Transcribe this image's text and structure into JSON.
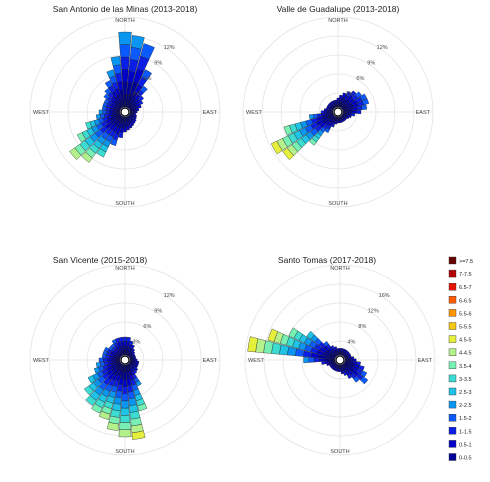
{
  "palette": [
    "#00007a",
    "#000099",
    "#0000c8",
    "#0a1ee6",
    "#0a5aff",
    "#0a96f0",
    "#1ec3e6",
    "#3cdcd2",
    "#78f0b4",
    "#b4f08c",
    "#e6f03c",
    "#f5c814",
    "#ff9600",
    "#ff5a00",
    "#e61400",
    "#b40000",
    "#640000"
  ],
  "legend": {
    "labels": [
      ">=7.5",
      "7-7.5",
      "6.5-7",
      "6-6.5",
      "5.5-6",
      "5-5.5",
      "4.5-5",
      "4-4.5",
      "3.5-4",
      "3-3.5",
      "2.5-3",
      "2-2.5",
      "1.5-2",
      "1-1.5",
      "0.5-1",
      "0-0.5"
    ],
    "colors": [
      "#640000",
      "#b40000",
      "#e61400",
      "#ff5a00",
      "#ff9600",
      "#f5c814",
      "#e6f03c",
      "#b4f08c",
      "#78f0b4",
      "#3cdcd2",
      "#1ec3e6",
      "#0a96f0",
      "#0a5aff",
      "#0a1ee6",
      "#0000c8",
      "#000099"
    ]
  },
  "chart_data": [
    {
      "type": "windrose",
      "title": "San Antonio de las Minas (2013-2018)",
      "directions": {
        "north": "NORTH",
        "south": "SOUTH",
        "east": "EAST",
        "west": "WEST"
      },
      "pct_labels": [
        "3%",
        "6%",
        "9%",
        "12%"
      ],
      "max_pct": 15,
      "sectors_deg": [
        0,
        10,
        20,
        30,
        40,
        50,
        60,
        70,
        80,
        90,
        100,
        110,
        120,
        130,
        140,
        150,
        160,
        170,
        180,
        190,
        200,
        210,
        220,
        230,
        240,
        250,
        260,
        270,
        280,
        290,
        300,
        310,
        320,
        330,
        340,
        350
      ],
      "frequency_pct": [
        12.5,
        12.0,
        11.0,
        7.0,
        4.5,
        3.0,
        2.5,
        2.0,
        1.5,
        1.2,
        1.0,
        1.2,
        1.3,
        1.5,
        1.6,
        1.8,
        2.0,
        2.2,
        2.5,
        3.5,
        5.0,
        7.5,
        9.5,
        10.5,
        8.0,
        6.0,
        4.0,
        3.5,
        3.0,
        3.0,
        3.0,
        3.5,
        4.0,
        5.0,
        6.5,
        8.5
      ],
      "max_speed_bin": [
        6,
        6,
        5,
        5,
        5,
        4,
        4,
        3,
        3,
        3,
        3,
        3,
        3,
        3,
        3,
        3,
        3,
        3,
        3,
        4,
        5,
        8,
        10,
        10,
        9,
        8,
        6,
        6,
        5,
        5,
        5,
        5,
        5,
        5,
        6,
        6
      ]
    },
    {
      "type": "windrose",
      "title": "Valle de Guadalupe (2013-2018)",
      "directions": {
        "north": "NORTH",
        "south": "SOUTH",
        "east": "EAST",
        "west": "WEST"
      },
      "pct_labels": [
        "3%",
        "6%",
        "9%",
        "12%"
      ],
      "max_pct": 15,
      "sectors_deg": [
        0,
        10,
        20,
        30,
        40,
        50,
        60,
        70,
        80,
        90,
        100,
        110,
        120,
        130,
        140,
        150,
        160,
        170,
        180,
        190,
        200,
        210,
        220,
        230,
        240,
        250,
        260,
        270,
        280,
        290,
        300,
        310,
        320,
        330,
        340,
        350
      ],
      "frequency_pct": [
        1.5,
        2.0,
        2.5,
        3.0,
        3.5,
        4.0,
        4.5,
        4.5,
        4.0,
        3.0,
        2.0,
        1.5,
        1.2,
        1.0,
        1.0,
        1.0,
        1.0,
        1.0,
        1.0,
        1.2,
        1.8,
        3.0,
        6.0,
        10.5,
        11.5,
        8.5,
        4.0,
        2.0,
        1.5,
        1.2,
        1.2,
        1.2,
        1.2,
        1.2,
        1.2,
        1.2
      ],
      "max_speed_bin": [
        3,
        3,
        3,
        4,
        4,
        5,
        5,
        5,
        5,
        4,
        4,
        3,
        3,
        3,
        3,
        3,
        3,
        3,
        3,
        3,
        4,
        5,
        9,
        11,
        11,
        9,
        6,
        4,
        3,
        3,
        3,
        3,
        3,
        3,
        3,
        3
      ]
    },
    {
      "type": "windrose",
      "title": "San Vicente (2015-2018)",
      "directions": {
        "north": "NORTH",
        "south": "SOUTH",
        "east": "EAST",
        "west": "WEST"
      },
      "pct_labels": [
        "3%",
        "6%",
        "9%",
        "12%"
      ],
      "max_pct": 15,
      "sectors_deg": [
        0,
        10,
        20,
        30,
        40,
        50,
        60,
        70,
        80,
        90,
        100,
        110,
        120,
        130,
        140,
        150,
        160,
        170,
        180,
        190,
        200,
        210,
        220,
        230,
        240,
        250,
        260,
        270,
        280,
        290,
        300,
        310,
        320,
        330,
        340,
        350
      ],
      "frequency_pct": [
        3.0,
        3.0,
        2.5,
        2.0,
        1.5,
        1.2,
        1.0,
        1.0,
        1.0,
        1.2,
        1.5,
        1.5,
        1.5,
        1.8,
        2.0,
        4.0,
        8.0,
        12.5,
        12.0,
        11.0,
        9.5,
        9.0,
        8.5,
        7.5,
        6.0,
        4.5,
        4.0,
        3.5,
        3.0,
        3.0,
        3.0,
        2.5,
        2.5,
        3.0,
        3.0,
        3.0
      ],
      "max_speed_bin": [
        4,
        4,
        4,
        3,
        3,
        3,
        3,
        3,
        3,
        3,
        3,
        3,
        3,
        3,
        4,
        6,
        9,
        11,
        10,
        10,
        10,
        9,
        8,
        8,
        7,
        6,
        6,
        5,
        5,
        5,
        5,
        5,
        5,
        5,
        4,
        4
      ]
    },
    {
      "type": "windrose",
      "title": "Santo Tomas (2017-2018)",
      "directions": {
        "north": "NORTH",
        "south": "SOUTH",
        "east": "EAST",
        "west": "WEST"
      },
      "pct_labels": [
        "4%",
        "8%",
        "12%",
        "16%"
      ],
      "max_pct": 20,
      "sectors_deg": [
        0,
        10,
        20,
        30,
        40,
        50,
        60,
        70,
        80,
        90,
        100,
        110,
        120,
        130,
        140,
        150,
        160,
        170,
        180,
        190,
        200,
        210,
        220,
        230,
        240,
        250,
        260,
        270,
        280,
        290,
        300,
        310,
        320,
        330,
        340,
        350
      ],
      "frequency_pct": [
        1.5,
        1.5,
        1.5,
        1.5,
        1.5,
        1.5,
        1.5,
        1.5,
        2.0,
        2.5,
        3.5,
        4.5,
        5.5,
        6.5,
        5.0,
        3.5,
        2.5,
        2.0,
        1.5,
        1.5,
        1.5,
        1.5,
        1.5,
        1.5,
        1.5,
        2.0,
        3.0,
        7.0,
        19.5,
        15.5,
        11.5,
        8.0,
        4.0,
        2.5,
        2.0,
        1.5
      ],
      "max_speed_bin": [
        3,
        3,
        3,
        3,
        3,
        3,
        3,
        3,
        3,
        3,
        4,
        4,
        5,
        5,
        5,
        4,
        4,
        3,
        3,
        3,
        3,
        3,
        3,
        3,
        3,
        3,
        4,
        6,
        11,
        11,
        9,
        7,
        5,
        4,
        3,
        3
      ]
    }
  ]
}
